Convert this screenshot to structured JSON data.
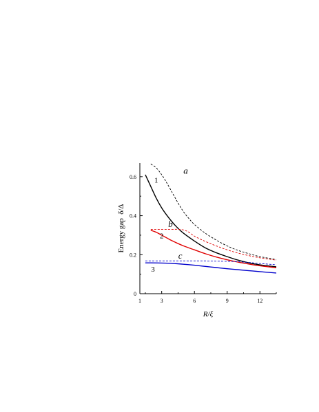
{
  "chart_data": {
    "type": "line",
    "xlabel": "R/ξ",
    "ylabel": "Energy gap  δ/Δ",
    "xlim": [
      1,
      13.5
    ],
    "ylim": [
      0,
      0.67
    ],
    "x_ticks": [
      {
        "value": 1,
        "label": "1"
      },
      {
        "value": 3,
        "label": "3"
      },
      {
        "value": 6,
        "label": "6"
      },
      {
        "value": 9,
        "label": "9"
      },
      {
        "value": 12,
        "label": "12"
      }
    ],
    "y_ticks": [
      {
        "value": 0,
        "label": "0"
      },
      {
        "value": 0.2,
        "label": "0.2"
      },
      {
        "value": 0.4,
        "label": "0.4"
      },
      {
        "value": 0.6,
        "label": "0.6"
      }
    ],
    "grid": false,
    "series": [
      {
        "name": "1",
        "color": "#000000",
        "dash": "solid",
        "x": [
          1.5,
          2.0,
          2.5,
          3.0,
          3.5,
          4.0,
          4.5,
          5.0,
          6.0,
          7.0,
          8.0,
          9.0,
          10.0,
          11.0,
          12.0,
          13.5
        ],
        "y": [
          0.61,
          0.55,
          0.49,
          0.44,
          0.4,
          0.365,
          0.335,
          0.31,
          0.27,
          0.235,
          0.21,
          0.19,
          0.172,
          0.158,
          0.148,
          0.138
        ]
      },
      {
        "name": "2",
        "color": "#e00000",
        "dash": "solid",
        "x": [
          2.0,
          2.5,
          3.0,
          3.5,
          4.0,
          5.0,
          6.0,
          7.0,
          8.0,
          9.0,
          10.0,
          11.0,
          12.0,
          13.5
        ],
        "y": [
          0.325,
          0.315,
          0.3,
          0.285,
          0.27,
          0.245,
          0.225,
          0.205,
          0.188,
          0.174,
          0.162,
          0.152,
          0.143,
          0.133
        ]
      },
      {
        "name": "3",
        "color": "#0000cc",
        "dash": "solid",
        "x": [
          1.5,
          2.0,
          3.0,
          4.0,
          5.0,
          6.0,
          7.0,
          8.0,
          9.0,
          10.0,
          11.0,
          12.0,
          13.5
        ],
        "y": [
          0.158,
          0.158,
          0.157,
          0.155,
          0.151,
          0.146,
          0.14,
          0.134,
          0.128,
          0.123,
          0.118,
          0.113,
          0.106
        ]
      },
      {
        "name": "a",
        "color": "#000000",
        "dash": "dashed",
        "x": [
          2.0,
          2.5,
          3.0,
          3.5,
          4.0,
          4.5,
          5.0,
          5.5,
          6.0,
          7.0,
          8.0,
          9.0,
          10.0,
          11.0,
          12.0,
          13.5
        ],
        "y": [
          0.665,
          0.645,
          0.61,
          0.565,
          0.515,
          0.465,
          0.42,
          0.385,
          0.355,
          0.31,
          0.275,
          0.245,
          0.222,
          0.205,
          0.19,
          0.175
        ]
      },
      {
        "name": "b",
        "color": "#e00000",
        "dash": "dashed",
        "x": [
          2.0,
          2.5,
          3.0,
          3.5,
          4.0,
          4.5,
          5.0,
          5.5,
          6.0,
          7.0,
          8.0,
          9.0,
          10.0,
          11.0,
          12.0,
          13.5
        ],
        "y": [
          0.33,
          0.33,
          0.33,
          0.33,
          0.33,
          0.33,
          0.327,
          0.315,
          0.295,
          0.268,
          0.245,
          0.225,
          0.208,
          0.195,
          0.184,
          0.172
        ]
      },
      {
        "name": "c",
        "color": "#0000cc",
        "dash": "dashed",
        "x": [
          1.5,
          2.0,
          3.0,
          4.0,
          5.0,
          6.0,
          7.0,
          8.0,
          9.0,
          10.0,
          11.0,
          12.0,
          13.5
        ],
        "y": [
          0.168,
          0.168,
          0.168,
          0.168,
          0.168,
          0.168,
          0.168,
          0.167,
          0.166,
          0.164,
          0.16,
          0.155,
          0.148
        ]
      }
    ],
    "curve_labels": [
      {
        "text": "a",
        "x": 5.2,
        "y": 0.615,
        "italic": true
      },
      {
        "text": "1",
        "x": 2.5,
        "y": 0.57,
        "italic": false
      },
      {
        "text": "b",
        "x": 3.8,
        "y": 0.342,
        "italic": true
      },
      {
        "text": "2",
        "x": 3.0,
        "y": 0.283,
        "italic": false
      },
      {
        "text": "c",
        "x": 4.7,
        "y": 0.18,
        "italic": true
      },
      {
        "text": "3",
        "x": 2.2,
        "y": 0.112,
        "italic": false
      }
    ]
  }
}
